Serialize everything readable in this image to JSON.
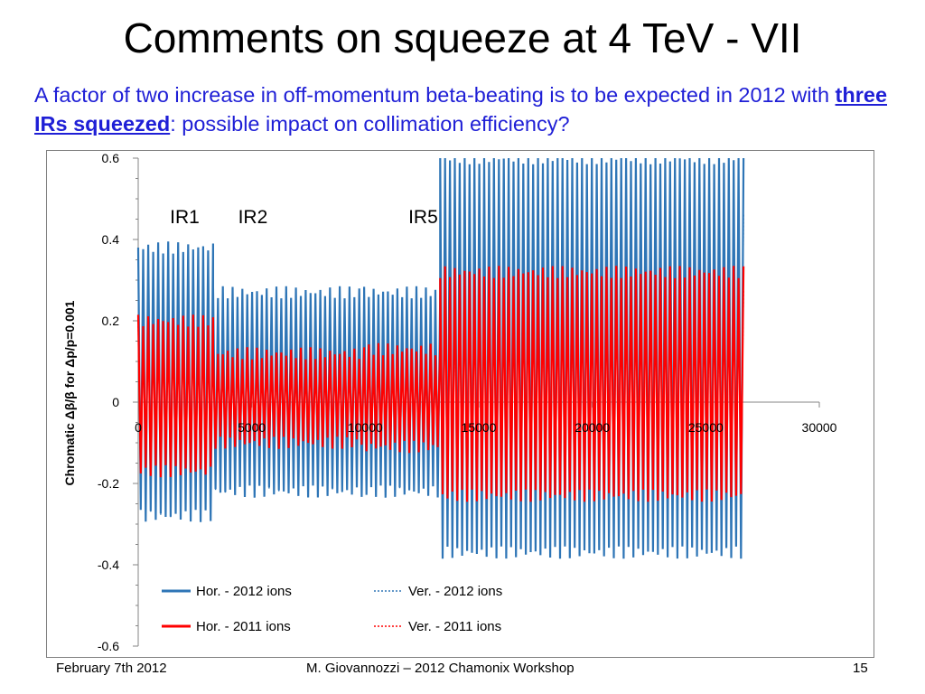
{
  "slide": {
    "title": "Comments on squeeze at 4 TeV - VII",
    "subtitle_pre": "A factor of two increase in off-momentum beta-beating is to be expected in 2012 with ",
    "subtitle_emph": "three IRs squeezed",
    "subtitle_post": ": possible impact on collimation efficiency?"
  },
  "footer": {
    "date": "February 7th 2012",
    "author": "M. Giovannozzi – 2012 Chamonix Workshop",
    "page": "15"
  },
  "chart_data": {
    "type": "line",
    "ylabel": "Chromatic Δβ/β for Δp/p=0.001",
    "xlim": [
      0,
      30000
    ],
    "ylim": [
      -0.6,
      0.6
    ],
    "x_ticks": [
      "0",
      "5000",
      "10000",
      "15000",
      "20000",
      "25000",
      "30000"
    ],
    "y_ticks": [
      "0.6",
      "0.4",
      "0.2",
      "0",
      "-0.2",
      "-0.4",
      "-0.6"
    ],
    "x_tick_values": [
      0,
      5000,
      10000,
      15000,
      20000,
      25000,
      30000
    ],
    "y_tick_values": [
      0.6,
      0.4,
      0.2,
      0,
      -0.2,
      -0.4,
      -0.6
    ],
    "annotations": [
      {
        "text": "IR1",
        "x": 1400,
        "y": 0.44
      },
      {
        "text": "IR2",
        "x": 4400,
        "y": 0.44
      },
      {
        "text": "IR5",
        "x": 11900,
        "y": 0.44
      }
    ],
    "legend": {
      "position": "bottom",
      "entries": [
        {
          "name": "Hor. - 2012 ions",
          "color": "#2e75b6",
          "dash": "solid"
        },
        {
          "name": "Ver. - 2012 ions",
          "color": "#2e75b6",
          "dash": "dotted"
        },
        {
          "name": "Hor. - 2011 ions",
          "color": "#ff0000",
          "dash": "solid"
        },
        {
          "name": "Ver. - 2011 ions",
          "color": "#ff0000",
          "dash": "dotted"
        }
      ]
    },
    "x_end": 26660,
    "series": [
      {
        "name": "Hor. - 2012 ions",
        "color": "#2e75b6",
        "style": "solid",
        "envelope": [
          {
            "x0": 0,
            "x1": 3300,
            "max": 0.38,
            "min": -0.28
          },
          {
            "x0": 3300,
            "x1": 9950,
            "max": 0.27,
            "min": -0.22
          },
          {
            "x0": 9950,
            "x1": 13300,
            "max": 0.27,
            "min": -0.22
          },
          {
            "x0": 13300,
            "x1": 26660,
            "max": 0.6,
            "min": -0.37
          }
        ]
      },
      {
        "name": "Ver. - 2012 ions",
        "color": "#2e75b6",
        "style": "dotted",
        "envelope": [
          {
            "x0": 0,
            "x1": 3300,
            "max": 0.36,
            "min": -0.27
          },
          {
            "x0": 3300,
            "x1": 9950,
            "max": 0.25,
            "min": -0.21
          },
          {
            "x0": 9950,
            "x1": 13300,
            "max": 0.25,
            "min": -0.21
          },
          {
            "x0": 13300,
            "x1": 26660,
            "max": 0.45,
            "min": -0.34
          }
        ]
      },
      {
        "name": "Hor. - 2011 ions",
        "color": "#ff0000",
        "style": "solid",
        "envelope": [
          {
            "x0": 0,
            "x1": 3300,
            "max": 0.2,
            "min": -0.17
          },
          {
            "x0": 3300,
            "x1": 9950,
            "max": 0.12,
            "min": -0.1
          },
          {
            "x0": 9950,
            "x1": 13300,
            "max": 0.13,
            "min": -0.11
          },
          {
            "x0": 13300,
            "x1": 26660,
            "max": 0.32,
            "min": -0.23
          }
        ]
      },
      {
        "name": "Ver. - 2011 ions",
        "color": "#ff0000",
        "style": "dotted",
        "envelope": [
          {
            "x0": 0,
            "x1": 3300,
            "max": 0.18,
            "min": -0.16
          },
          {
            "x0": 3300,
            "x1": 9950,
            "max": 0.1,
            "min": -0.09
          },
          {
            "x0": 9950,
            "x1": 13300,
            "max": 0.11,
            "min": -0.1
          },
          {
            "x0": 13300,
            "x1": 26660,
            "max": 0.27,
            "min": -0.2
          }
        ]
      }
    ]
  }
}
